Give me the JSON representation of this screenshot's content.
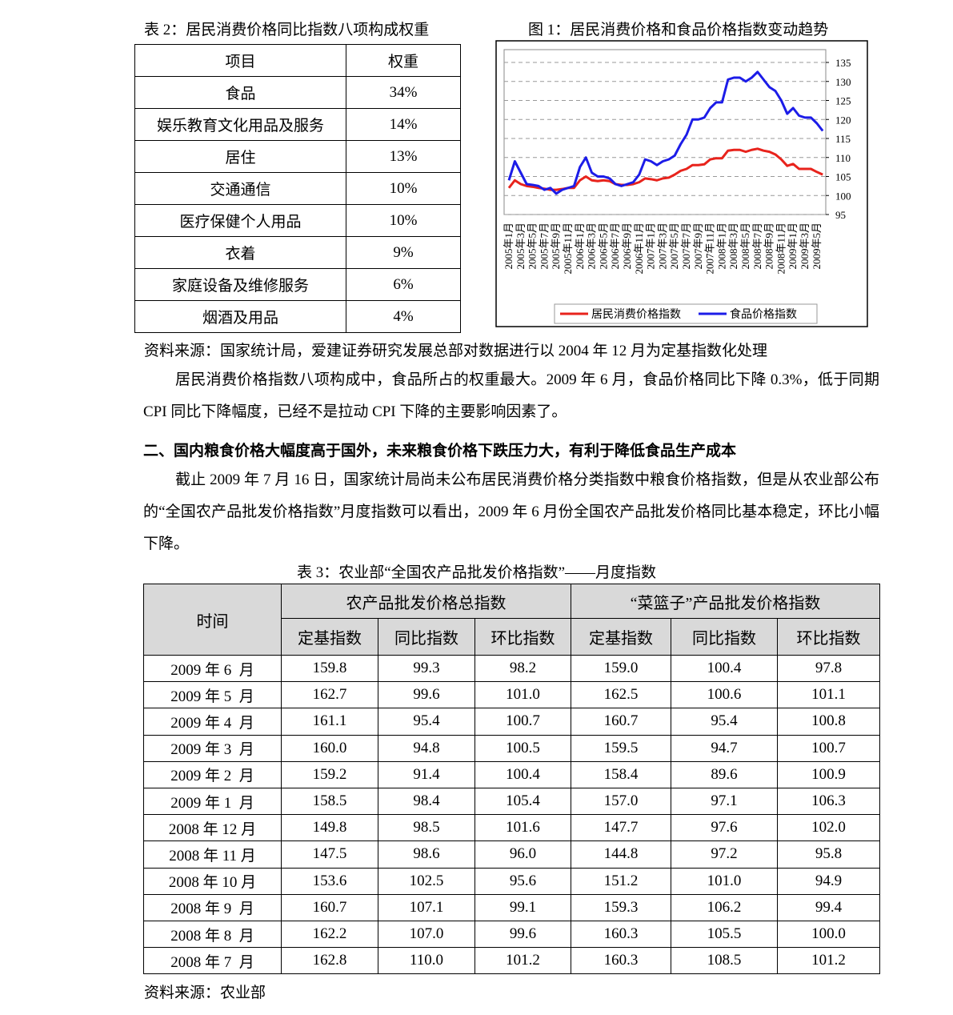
{
  "table2": {
    "caption": "表 2：居民消费价格同比指数八项构成权重",
    "header": [
      "项目",
      "权重"
    ],
    "rows": [
      [
        "食品",
        "34%"
      ],
      [
        "娱乐教育文化用品及服务",
        "14%"
      ],
      [
        "居住",
        "13%"
      ],
      [
        "交通通信",
        "10%"
      ],
      [
        "医疗保健个人用品",
        "10%"
      ],
      [
        "衣着",
        "9%"
      ],
      [
        "家庭设备及维修服务",
        "6%"
      ],
      [
        "烟酒及用品",
        "4%"
      ]
    ]
  },
  "chart_data": {
    "type": "line",
    "title": "图 1：居民消费价格和食品价格指数变动趋势",
    "categories": [
      "2005年1月",
      null,
      "2005年3月",
      null,
      "2005年5月",
      null,
      "2005年7月",
      null,
      "2005年9月",
      null,
      "2005年11月",
      null,
      "2006年1月",
      null,
      "2006年3月",
      null,
      "2006年5月",
      null,
      "2006年7月",
      null,
      "2006年9月",
      null,
      "2006年11月",
      null,
      "2007年1月",
      null,
      "2007年3月",
      null,
      "2007年5月",
      null,
      "2007年7月",
      null,
      "2007年9月",
      null,
      "2007年11月",
      null,
      "2008年1月",
      null,
      "2008年3月",
      null,
      "2008年5月",
      null,
      "2008年7月",
      null,
      "2008年9月",
      null,
      "2008年11月",
      null,
      "2009年1月",
      null,
      "2009年3月",
      null,
      "2009年5月",
      null
    ],
    "series": [
      {
        "name": "居民消费价格指数",
        "color": "#e8231c",
        "values": [
          102,
          104,
          103,
          102.5,
          102.3,
          102,
          101.8,
          101.5,
          101.5,
          101.7,
          102,
          102,
          104,
          105,
          104,
          103.8,
          104,
          103.8,
          103,
          102.8,
          102.8,
          103,
          103.5,
          104.5,
          104.3,
          104,
          104.5,
          104.7,
          105.5,
          106.5,
          107,
          108,
          108,
          108.2,
          109.5,
          109.8,
          109.8,
          111.8,
          112,
          112,
          111.5,
          112,
          112.3,
          111.8,
          111.5,
          110.8,
          109.5,
          107.8,
          108.3,
          107,
          107,
          107,
          106.2,
          105.5
        ]
      },
      {
        "name": "食品价格指数",
        "color": "#1c1ce8",
        "values": [
          104,
          109,
          106,
          103,
          102.8,
          102.5,
          101.5,
          102,
          100.5,
          101.5,
          102,
          102.5,
          107.5,
          110,
          106,
          105,
          105,
          104.5,
          103,
          102.5,
          103,
          103.5,
          105.5,
          109.5,
          109,
          108,
          109,
          109.5,
          110.5,
          113.5,
          116,
          120,
          120,
          120.5,
          123,
          124.5,
          124.5,
          130.5,
          131,
          131,
          130,
          131,
          132.5,
          130.5,
          128.5,
          127.5,
          125,
          121.5,
          123,
          121,
          120.5,
          120.5,
          119,
          117
        ]
      }
    ],
    "ylim": [
      95,
      135
    ],
    "yticks": [
      95,
      100,
      105,
      110,
      115,
      120,
      125,
      130,
      135
    ],
    "grid": true,
    "legend": "bottom"
  },
  "source1": "资料来源：国家统计局，爱建证券研究发展总部对数据进行以 2004 年 12 月为定基指数化处理",
  "paragraph1": "居民消费价格指数八项构成中，食品所占的权重最大。2009 年 6 月，食品价格同比下降 0.3%，低于同期 CPI 同比下降幅度，已经不是拉动 CPI 下降的主要影响因素了。",
  "heading2": "二、国内粮食价格大幅度高于国外，未来粮食价格下跌压力大，有利于降低食品生产成本",
  "paragraph2": "截止 2009 年 7 月 16 日，国家统计局尚未公布居民消费价格分类指数中粮食价格指数，但是从农业部公布的“全国农产品批发价格指数”月度指数可以看出，2009 年 6 月份全国农产品批发价格同比基本稳定，环比小幅下降。",
  "table3": {
    "caption": "表 3：农业部“全国农产品批发价格指数”——月度指数",
    "header_time": "时间",
    "groups": [
      "农产品批发价格总指数",
      "“菜篮子”产品批发价格指数"
    ],
    "subheaders": [
      "定基指数",
      "同比指数",
      "环比指数",
      "定基指数",
      "同比指数",
      "环比指数"
    ],
    "rows": [
      [
        "2009 年 6  月",
        "159.8",
        "99.3",
        "98.2",
        "159.0",
        "100.4",
        "97.8"
      ],
      [
        "2009 年 5  月",
        "162.7",
        "99.6",
        "101.0",
        "162.5",
        "100.6",
        "101.1"
      ],
      [
        "2009 年 4  月",
        "161.1",
        "95.4",
        "100.7",
        "160.7",
        "95.4",
        "100.8"
      ],
      [
        "2009 年 3  月",
        "160.0",
        "94.8",
        "100.5",
        "159.5",
        "94.7",
        "100.7"
      ],
      [
        "2009 年 2  月",
        "159.2",
        "91.4",
        "100.4",
        "158.4",
        "89.6",
        "100.9"
      ],
      [
        "2009 年 1  月",
        "158.5",
        "98.4",
        "105.4",
        "157.0",
        "97.1",
        "106.3"
      ],
      [
        "2008 年 12 月",
        "149.8",
        "98.5",
        "101.6",
        "147.7",
        "97.6",
        "102.0"
      ],
      [
        "2008 年 11 月",
        "147.5",
        "98.6",
        "96.0",
        "144.8",
        "97.2",
        "95.8"
      ],
      [
        "2008 年 10 月",
        "153.6",
        "102.5",
        "95.6",
        "151.2",
        "101.0",
        "94.9"
      ],
      [
        "2008 年 9  月",
        "160.7",
        "107.1",
        "99.1",
        "159.3",
        "106.2",
        "99.4"
      ],
      [
        "2008 年 8  月",
        "162.2",
        "107.0",
        "99.6",
        "160.3",
        "105.5",
        "100.0"
      ],
      [
        "2008 年 7  月",
        "162.8",
        "110.0",
        "101.2",
        "160.3",
        "108.5",
        "101.2"
      ]
    ]
  },
  "source2": "资料来源：农业部"
}
